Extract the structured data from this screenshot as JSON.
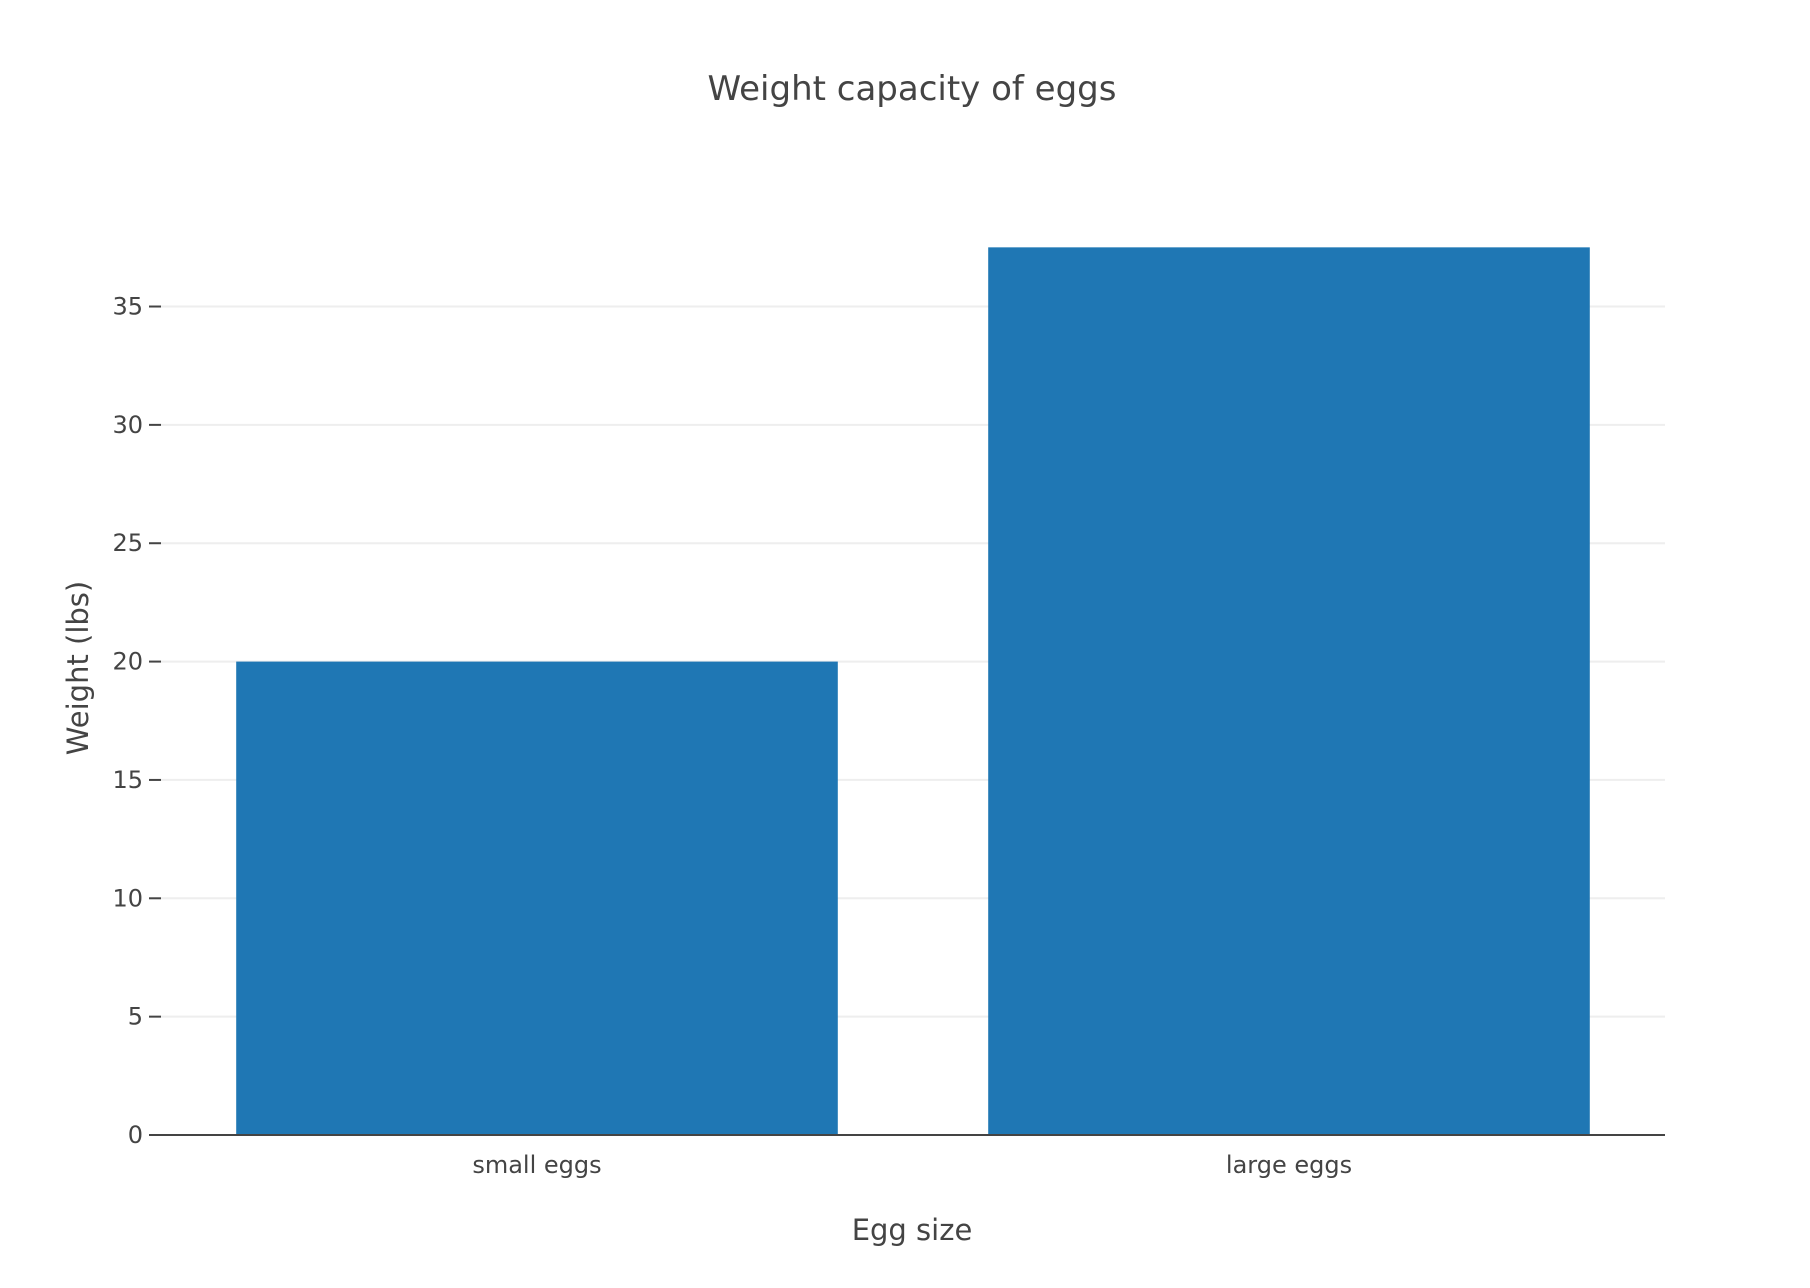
{
  "chart_data": {
    "type": "bar",
    "title": "Weight capacity of eggs",
    "xlabel": "Egg size",
    "ylabel": "Weight (lbs)",
    "categories": [
      "small eggs",
      "large eggs"
    ],
    "values": [
      20,
      37.5
    ],
    "ylim": [
      0,
      39.5
    ],
    "yticks": [
      0,
      5,
      10,
      15,
      20,
      25,
      30,
      35
    ],
    "grid": true,
    "legend": "none",
    "bar_color": "#1f77b4"
  }
}
